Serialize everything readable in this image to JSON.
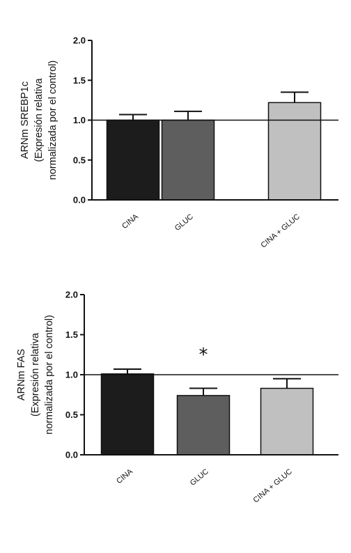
{
  "chart_data": [
    {
      "type": "bar",
      "categories": [
        "CINA",
        "GLUC",
        "CINA + GLUC"
      ],
      "values": [
        1.0,
        1.0,
        1.22
      ],
      "error_bars": [
        0.07,
        0.11,
        0.13
      ],
      "bar_colors": [
        "#1c1c1c",
        "#5e5e5e",
        "#c0c0c0"
      ],
      "ylabel_lines": [
        "ARNm SREBP1c",
        "(Expresión relativa",
        "normalizada por el control)"
      ],
      "ylim": [
        0,
        2.0
      ],
      "yticks": [
        "0.0",
        "0.5",
        "1.0",
        "1.5",
        "2.0"
      ],
      "reference_line": 1.0,
      "annotations": []
    },
    {
      "type": "bar",
      "categories": [
        "CINA",
        "GLUC",
        "CINA + GLUC"
      ],
      "values": [
        1.01,
        0.74,
        0.83
      ],
      "error_bars": [
        0.06,
        0.09,
        0.12
      ],
      "bar_colors": [
        "#1c1c1c",
        "#5e5e5e",
        "#c0c0c0"
      ],
      "ylabel_lines": [
        "ARNm FAS",
        "(Expresión relativa",
        "normalizada por el control)"
      ],
      "ylim": [
        0,
        2.0
      ],
      "yticks": [
        "0.0",
        "0.5",
        "1.0",
        "1.5",
        "2.0"
      ],
      "reference_line": 1.0,
      "annotations": [
        {
          "category": "GLUC",
          "text": "*"
        }
      ]
    }
  ]
}
